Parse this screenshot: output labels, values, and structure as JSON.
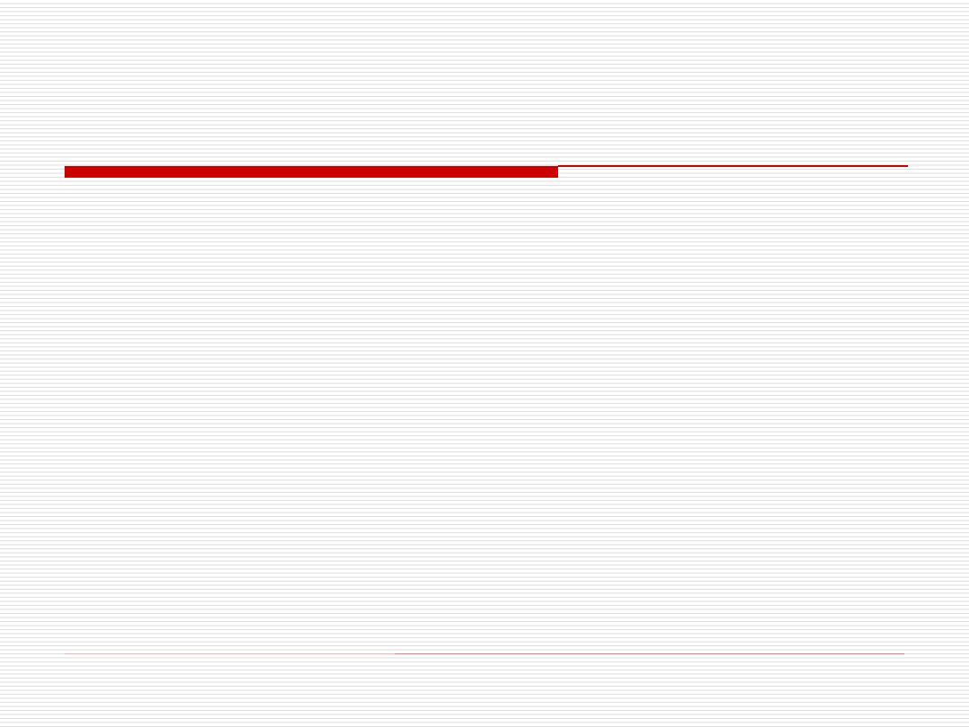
{
  "slide": {
    "background": "lined",
    "colors": {
      "accent": "#cc0000",
      "line": "#dedede",
      "footer_left": "#e6b8bc",
      "footer_right": "#d98088"
    },
    "decorations": [
      "title-bar-thick",
      "title-bar-thin",
      "footer-line-left",
      "footer-line-right"
    ]
  }
}
